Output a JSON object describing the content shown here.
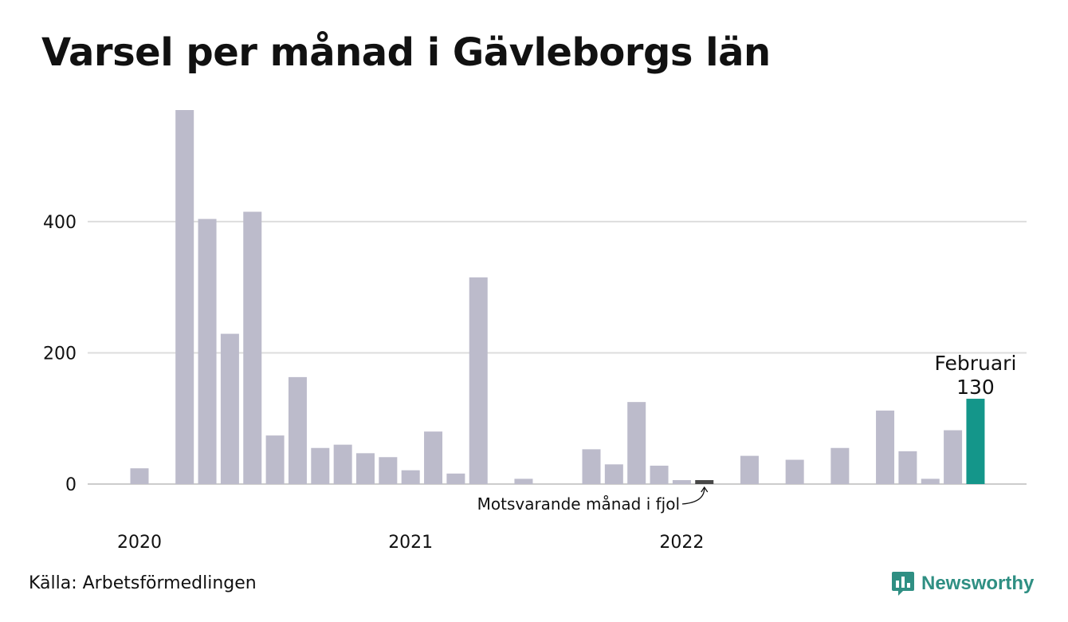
{
  "chart_data": {
    "type": "bar",
    "title": "Varsel per månad i Gävleborgs län",
    "xlabel": "",
    "ylabel": "",
    "ylim": [
      0,
      570
    ],
    "y_ticks": [
      0,
      200,
      400
    ],
    "x_tick_labels": [
      "2020",
      "2021",
      "2022"
    ],
    "grid": true,
    "legend": "none",
    "categories": [
      "2020-01",
      "2020-02",
      "2020-03",
      "2020-04",
      "2020-05",
      "2020-06",
      "2020-07",
      "2020-08",
      "2020-09",
      "2020-10",
      "2020-11",
      "2020-12",
      "2021-01",
      "2021-02",
      "2021-03",
      "2021-04",
      "2021-05",
      "2021-06",
      "2021-07",
      "2021-08",
      "2021-09",
      "2021-10",
      "2021-11",
      "2021-12",
      "2022-01",
      "2022-02",
      "2022-03",
      "2022-04",
      "2022-05",
      "2022-06",
      "2022-07",
      "2022-08",
      "2022-09",
      "2022-10",
      "2022-11",
      "2022-12",
      "2023-01",
      "2023-02"
    ],
    "values": [
      24,
      0,
      570,
      404,
      229,
      415,
      74,
      163,
      55,
      60,
      47,
      41,
      21,
      80,
      16,
      315,
      0,
      8,
      0,
      0,
      53,
      30,
      125,
      28,
      6,
      6,
      0,
      43,
      0,
      37,
      0,
      55,
      0,
      112,
      50,
      8,
      82,
      130
    ],
    "highlight_previous_year_index": 25,
    "highlight_current_index": 37,
    "annotations": {
      "current_label_month": "Februari",
      "current_label_value": "130",
      "previous_year_label": "Motsvarande månad i fjol"
    },
    "colors": {
      "bar": "#bcbbcb",
      "previous_year": "#474747",
      "current": "#14968a",
      "grid": "#dddddd",
      "axis": "#cccccc"
    }
  },
  "source": "Källa: Arbetsförmedlingen",
  "brand": {
    "name": "Newsworthy",
    "color": "#2f8f83",
    "icon": "bar-chart-speech-bubble-icon"
  }
}
